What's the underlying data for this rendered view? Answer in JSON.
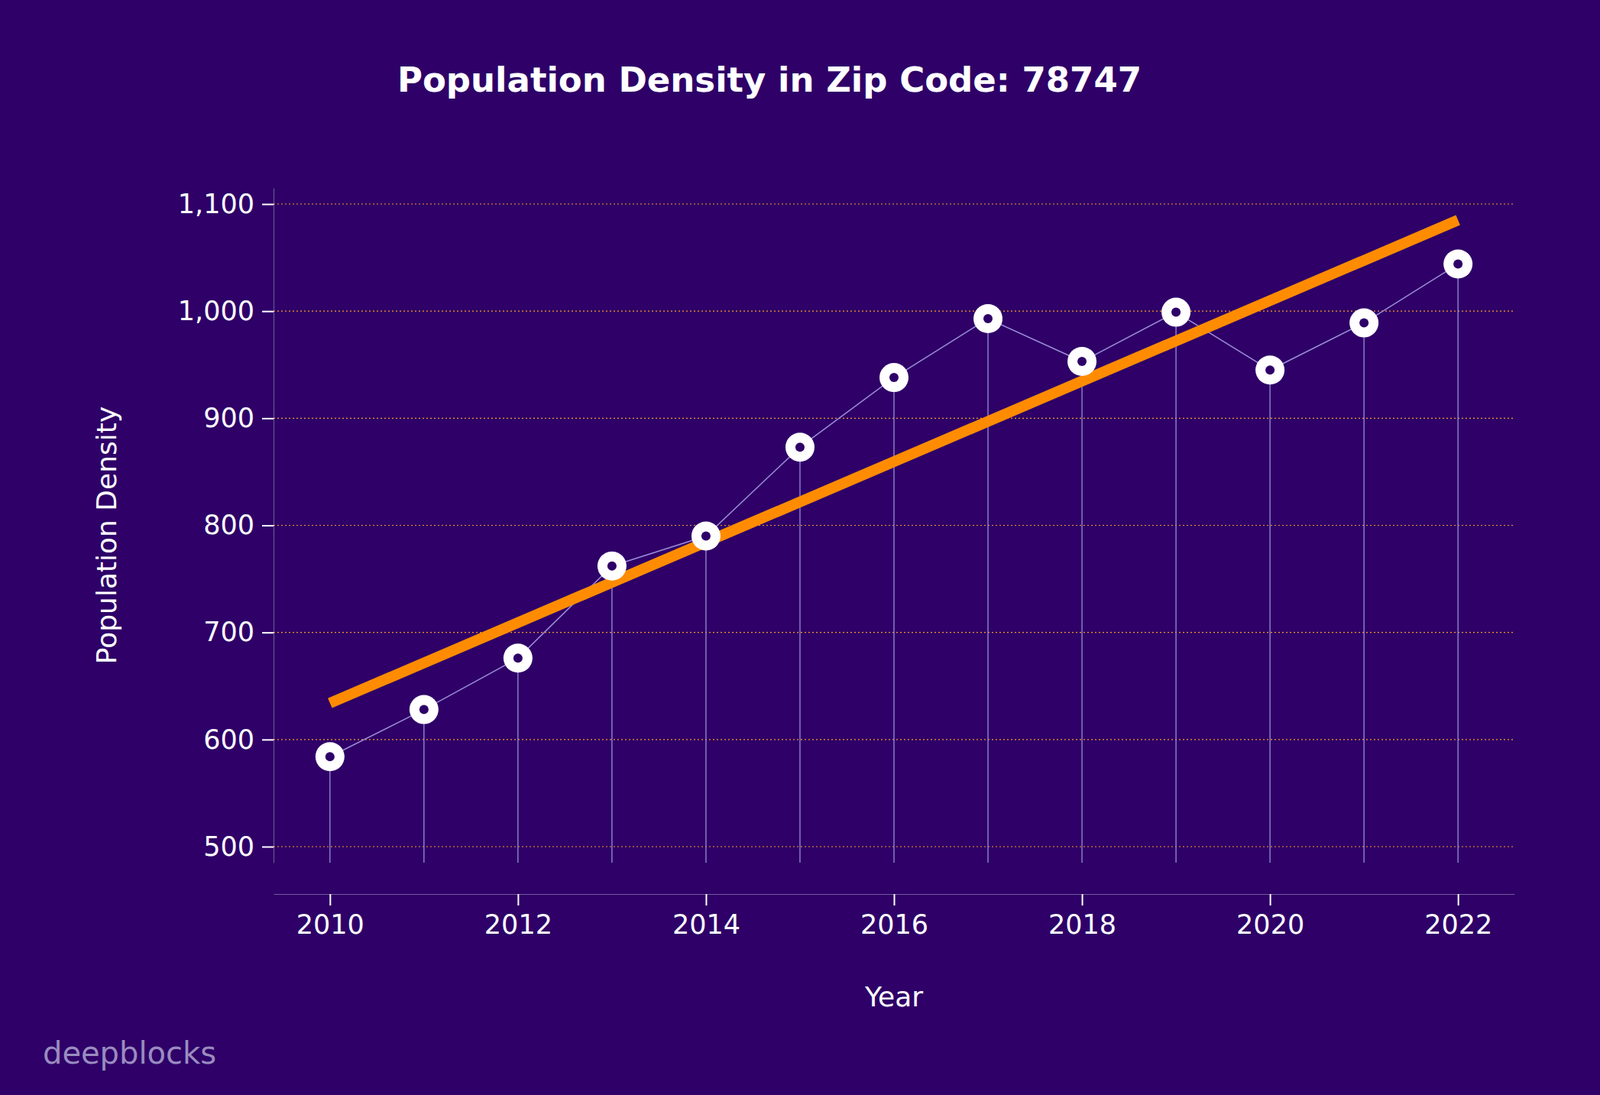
{
  "chart_data": {
    "type": "line",
    "title": "Population Density in Zip Code: 78747",
    "x_label": "Year",
    "y_label": "Population Density",
    "watermark": "deepblocks",
    "x": [
      2010,
      2011,
      2012,
      2013,
      2014,
      2015,
      2016,
      2017,
      2018,
      2019,
      2020,
      2021,
      2022
    ],
    "series": [
      {
        "color": "#9c8cd8",
        "marker": "o",
        "values": [
          584,
          628,
          676,
          762,
          790,
          873,
          938,
          993,
          953,
          999,
          945,
          989,
          1044
        ]
      }
    ],
    "trend": {
      "x": [
        2010,
        2022
      ],
      "values": [
        634,
        1085
      ],
      "color": "#ff8c00"
    },
    "xlim": [
      2009.4,
      2022.6
    ],
    "xticks": [
      2010,
      2012,
      2014,
      2016,
      2018,
      2020,
      2022
    ],
    "ylim": [
      485,
      1115
    ],
    "yticks": [
      500,
      600,
      700,
      800,
      900,
      {
        "value": 1000,
        "label": "1,000"
      },
      {
        "value": 1100,
        "label": "1,100"
      }
    ],
    "grid": true
  }
}
